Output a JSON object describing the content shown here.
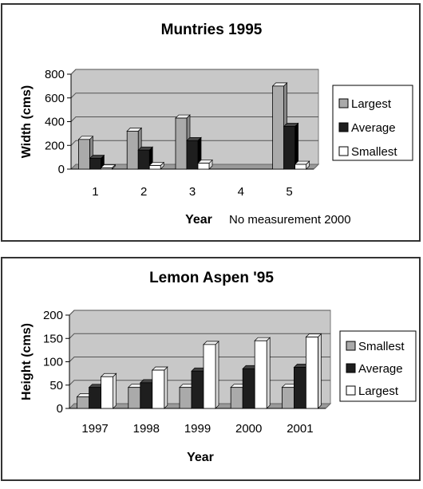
{
  "colors": {
    "plot_bg": "#c8c8c8",
    "light_gray_bar": "#aaaaaa",
    "dark_bar": "#1e1e1e",
    "white_bar": "#ffffff",
    "gridline": "#555555"
  },
  "chart_data": [
    {
      "type": "bar",
      "title": "Muntries 1995",
      "ylabel": "Width (cms)",
      "xlabel": "Year",
      "annotation": "No measurement 2000",
      "categories": [
        "1",
        "2",
        "3",
        "4",
        "5"
      ],
      "ylim": [
        0,
        800
      ],
      "yticks": [
        "0",
        "200",
        "400",
        "600",
        "800"
      ],
      "grid": true,
      "legend_position": "right",
      "series": [
        {
          "name": "Largest",
          "values": [
            250,
            320,
            430,
            null,
            700
          ],
          "color": "#aaaaaa"
        },
        {
          "name": "Average",
          "values": [
            90,
            160,
            240,
            null,
            360
          ],
          "color": "#1e1e1e"
        },
        {
          "name": "Smallest",
          "values": [
            10,
            30,
            50,
            null,
            40
          ],
          "color": "#ffffff"
        }
      ]
    },
    {
      "type": "bar",
      "title": "Lemon Aspen '95",
      "ylabel": "Height (cms)",
      "xlabel": "Year",
      "categories": [
        "1997",
        "1998",
        "1999",
        "2000",
        "2001"
      ],
      "ylim": [
        0,
        200
      ],
      "yticks": [
        "0",
        "50",
        "100",
        "150",
        "200"
      ],
      "grid": true,
      "legend_position": "right",
      "series": [
        {
          "name": "Smallest",
          "values": [
            25,
            45,
            45,
            45,
            45
          ],
          "color": "#aaaaaa"
        },
        {
          "name": "Average",
          "values": [
            45,
            55,
            80,
            85,
            88
          ],
          "color": "#1e1e1e"
        },
        {
          "name": "Largest",
          "values": [
            68,
            82,
            137,
            145,
            153
          ],
          "color": "#ffffff"
        }
      ]
    }
  ]
}
